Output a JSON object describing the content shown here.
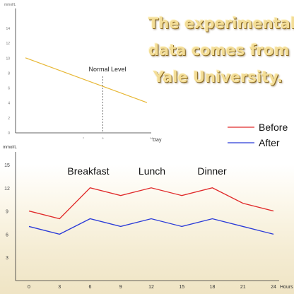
{
  "headline": {
    "line1": "The experimental",
    "line2": "data comes from",
    "line3": "Yale University."
  },
  "colors": {
    "before": "#e02a2a",
    "after": "#2a3ad8",
    "normal_level": "#e7b735",
    "axis": "#333333",
    "headline": "#f3dd97"
  },
  "chart_data": [
    {
      "type": "line",
      "ylabel": "mmol/L",
      "xlabel": "Day",
      "y_ticks": [
        "0",
        "2",
        "4",
        "6",
        "8",
        "10",
        "12",
        "14"
      ],
      "ylim": [
        0,
        14
      ],
      "x_ticks": [
        "7",
        "9",
        "14"
      ],
      "xlim": [
        0,
        14
      ],
      "annotation": "Normal Level",
      "marker_x": 9,
      "series": [
        {
          "name": "Normal Level",
          "color": "#e7b735",
          "x": [
            0,
            14
          ],
          "values": [
            9,
            5
          ]
        }
      ]
    },
    {
      "type": "line",
      "ylabel": "mmol/L",
      "xlabel": "Hours",
      "categories": [
        "0",
        "3",
        "6",
        "9",
        "12",
        "15",
        "18",
        "21",
        "24"
      ],
      "y_ticks": [
        "3",
        "6",
        "9",
        "12",
        "15"
      ],
      "ylim": [
        0,
        16
      ],
      "annotations": [
        "Breakfast",
        "Lunch",
        "Dinner"
      ],
      "legend_position": "top-right",
      "series": [
        {
          "name": "Before",
          "color": "#e02a2a",
          "values": [
            9,
            8,
            12,
            11,
            12,
            11,
            12,
            10,
            9
          ]
        },
        {
          "name": "After",
          "color": "#2a3ad8",
          "values": [
            7,
            6,
            8,
            7,
            8,
            7,
            8,
            7,
            6
          ]
        }
      ]
    }
  ]
}
